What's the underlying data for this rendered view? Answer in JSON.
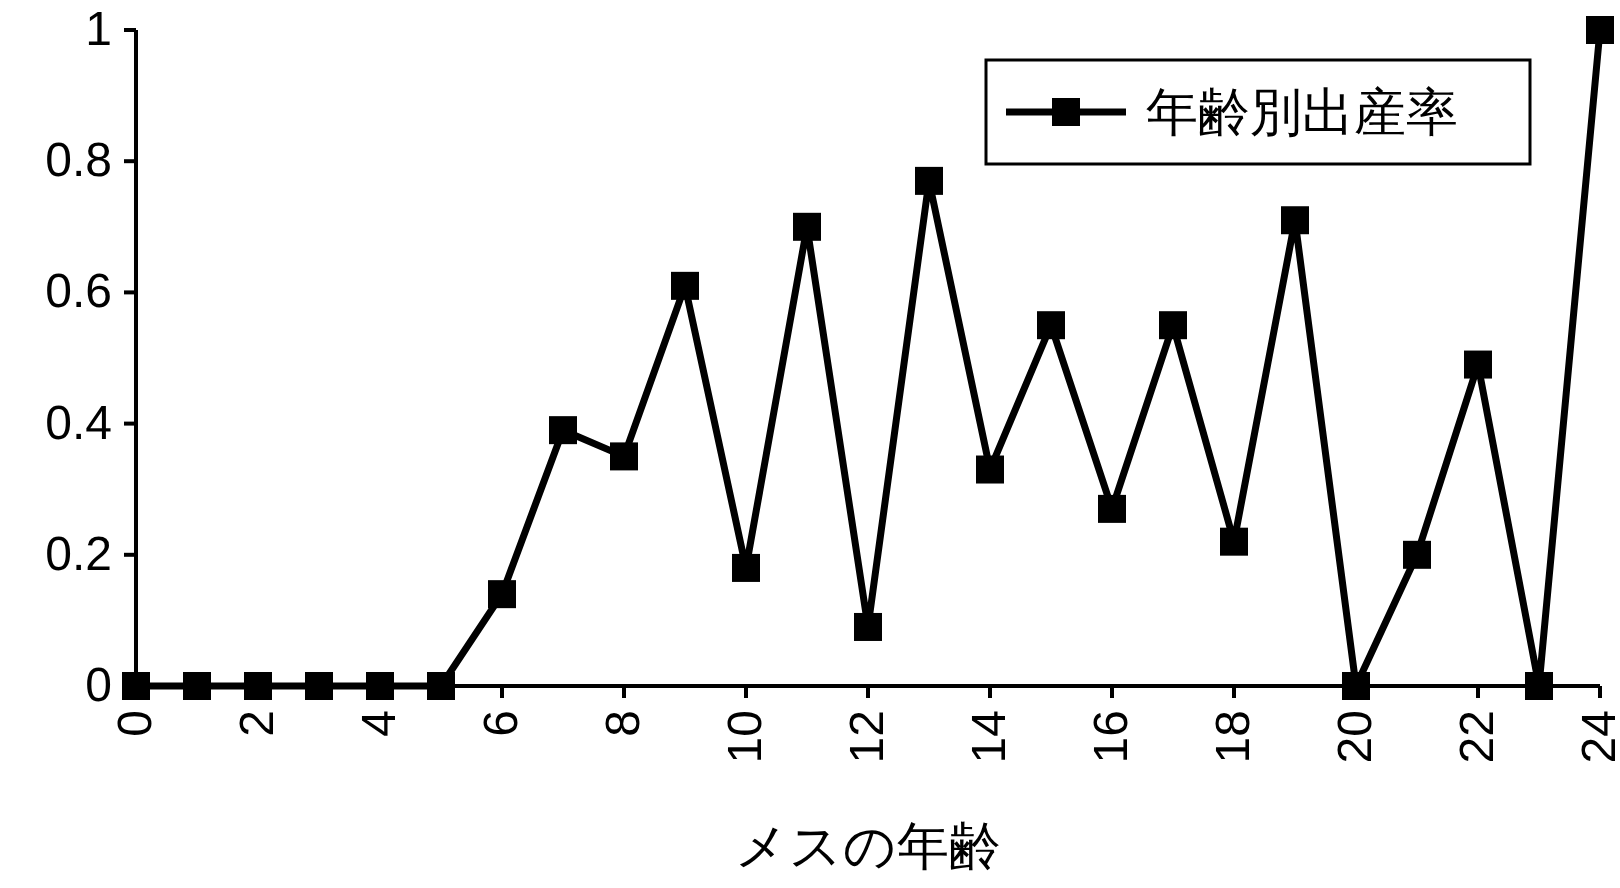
{
  "chart_data": {
    "type": "line",
    "xlabel": "メスの年齢",
    "x": [
      0,
      1,
      2,
      3,
      4,
      5,
      6,
      7,
      8,
      9,
      10,
      11,
      12,
      13,
      14,
      15,
      16,
      17,
      18,
      19,
      20,
      21,
      22,
      23,
      24
    ],
    "series": [
      {
        "name": "年齢別出産率",
        "color": "#000000",
        "values": [
          0,
          0,
          0,
          0,
          0,
          0,
          0.14,
          0.39,
          0.35,
          0.61,
          0.18,
          0.7,
          0.09,
          0.77,
          0.33,
          0.55,
          0.27,
          0.55,
          0.22,
          0.71,
          0,
          0.2,
          0.49,
          0,
          1
        ]
      }
    ],
    "xlim": [
      0,
      24
    ],
    "xticks": [
      0,
      2,
      4,
      6,
      8,
      10,
      12,
      14,
      16,
      18,
      20,
      22,
      24
    ],
    "ylim": [
      0,
      1
    ],
    "yticks": [
      0,
      0.2,
      0.4,
      0.6,
      0.8,
      1
    ],
    "marker": "square",
    "line_style": "solid",
    "legend": "top right",
    "grid": false
  }
}
